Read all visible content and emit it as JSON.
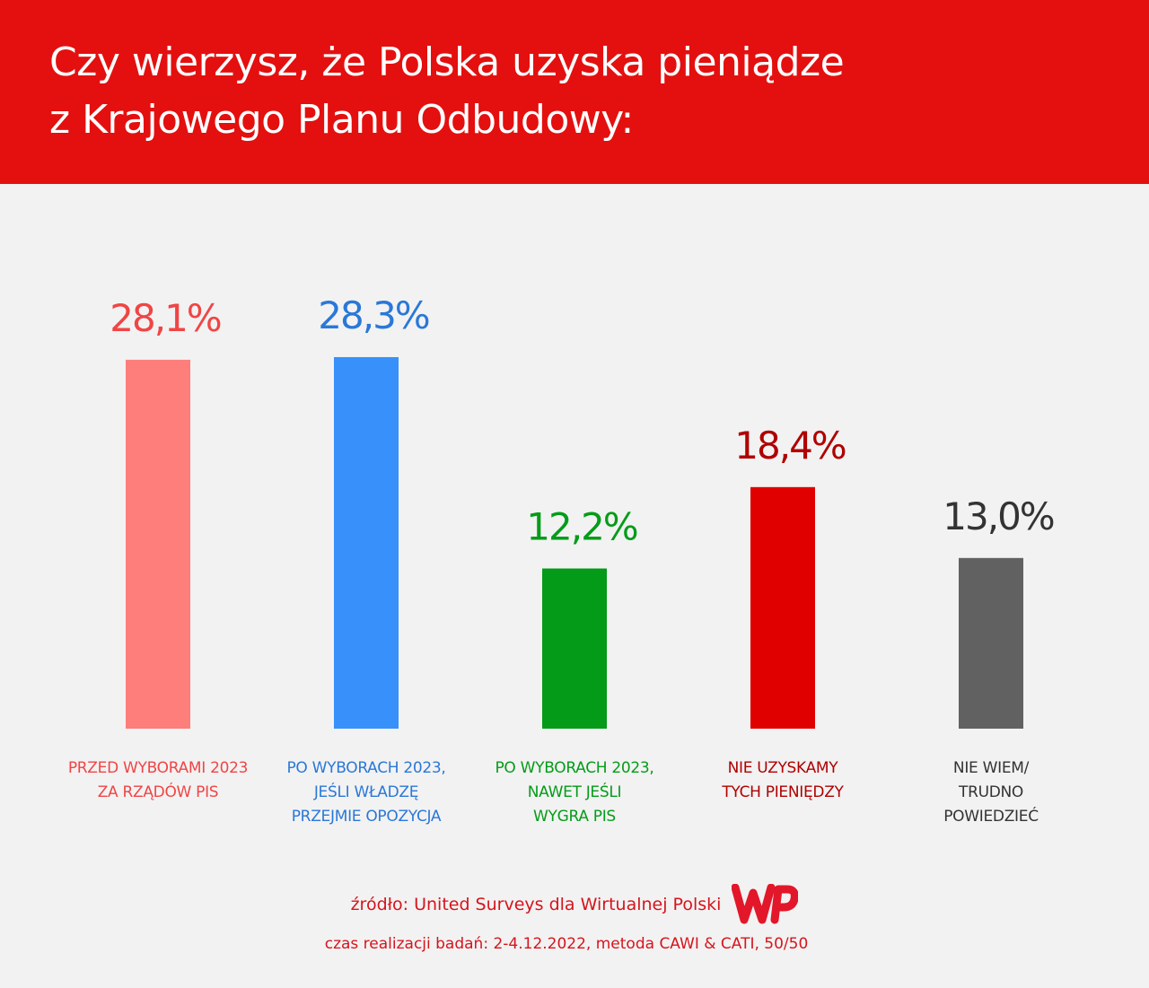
{
  "header": {
    "title_line1": "Czy wierzysz, że Polska uzyska pieniądze",
    "title_line2": "z Krajowego Planu Odbudowy:"
  },
  "chart_data": {
    "type": "bar",
    "title": "Czy wierzysz, że Polska uzyska pieniądze z Krajowego Planu Odbudowy:",
    "categories": [
      "PRZED WYBORAMI 2023\nZA RZĄDÓW PIS",
      "PO WYBORACH 2023,\nJEŚLI WŁADZĘ\nPRZEJMIE OPOZYCJA",
      "PO WYBORACH 2023,\nNAWET JEŚLI\nWYGRA PIS",
      "NIE UZYSKAMY\nTYCH PIENIĘDZY",
      "NIE WIEM/\nTRUDNO\nPOWIEDZIEĆ"
    ],
    "values": [
      28.1,
      28.3,
      12.2,
      18.4,
      13.0
    ],
    "value_labels": [
      "28,1%",
      "28,3%",
      "12,2%",
      "18,4%",
      "13,0%"
    ],
    "bar_colors": [
      "#fe7e7b",
      "#3890fa",
      "#039b17",
      "#e00000",
      "#616161"
    ],
    "label_colors": [
      "#f04545",
      "#2a78d8",
      "#049c18",
      "#b00000",
      "#333333"
    ],
    "ylim": [
      0,
      30
    ],
    "grid": false,
    "legend": "none"
  },
  "footer": {
    "source": "źródło: United Surveys dla Wirtualnej Polski",
    "logo_text": "WP",
    "meta": "czas realizacji badań: 2-4.12.2022, metoda CAWI & CATI, 50/50"
  }
}
